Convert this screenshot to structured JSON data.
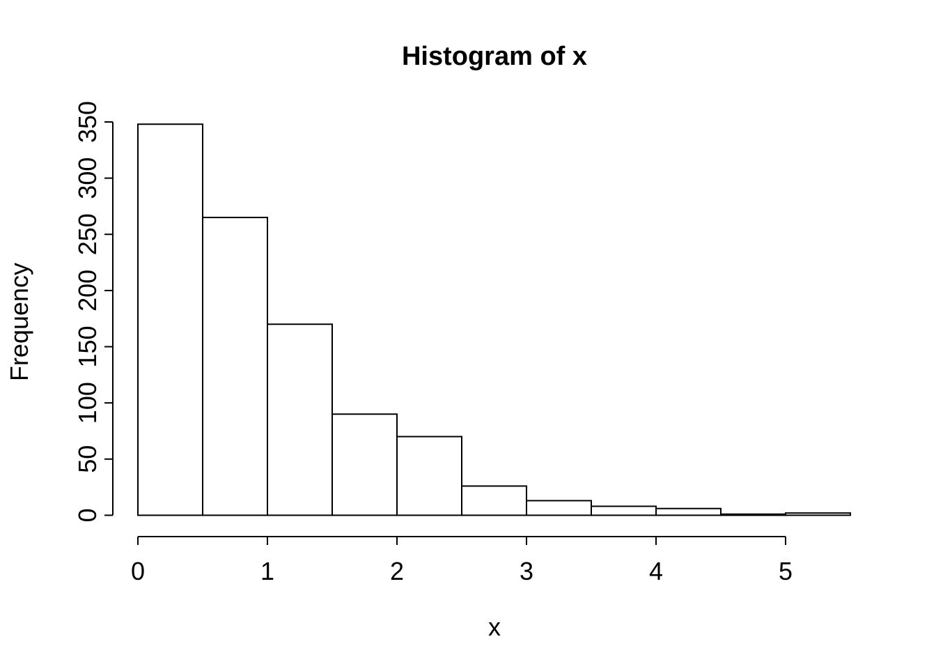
{
  "chart_data": {
    "type": "bar",
    "subtype": "histogram",
    "title": "Histogram of x",
    "xlabel": "x",
    "ylabel": "Frequency",
    "bin_edges": [
      0,
      0.5,
      1,
      1.5,
      2,
      2.5,
      3,
      3.5,
      4,
      4.5,
      5,
      5.5
    ],
    "counts": [
      348,
      265,
      170,
      90,
      70,
      26,
      13,
      8,
      6,
      1,
      2
    ],
    "x_ticks": [
      0,
      1,
      2,
      3,
      4,
      5
    ],
    "y_ticks": [
      0,
      50,
      100,
      150,
      200,
      250,
      300,
      350
    ],
    "xlim": [
      0,
      5.5
    ],
    "ylim": [
      0,
      350
    ],
    "grid": false,
    "legend": "none",
    "bar_fill": "#ffffff",
    "bar_stroke": "#000000",
    "axis_color": "#000000",
    "text_color": "#000000",
    "background": "#ffffff"
  }
}
